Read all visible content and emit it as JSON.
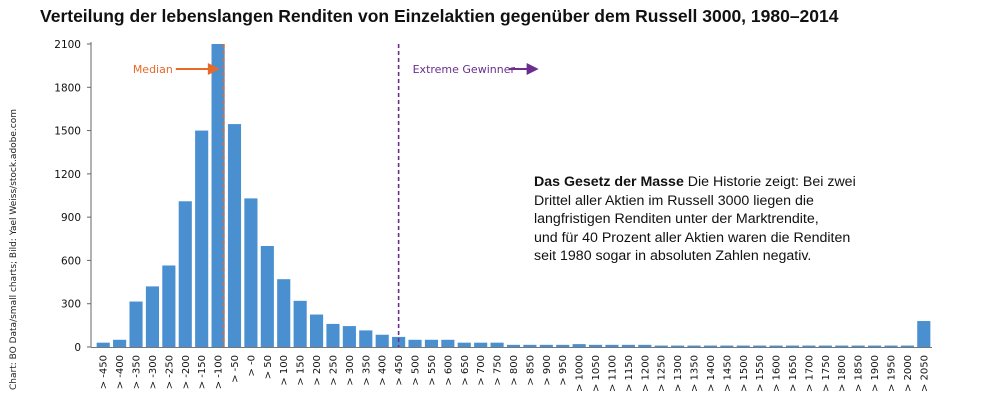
{
  "chart_data": {
    "type": "bar",
    "title": "Verteilung der lebenslangen Renditen von Einzelaktien gegenüber dem Russell 3000, 1980–2014",
    "source": "Chart: BO Data/small charts; Bild: Yael Weiss/stock.adobe.com",
    "ylim": [
      0,
      2100
    ],
    "yticks": [
      {
        "value": 0,
        "label": "0"
      },
      {
        "value": 300,
        "label": "300"
      },
      {
        "value": 600,
        "label": "600"
      },
      {
        "value": 900,
        "label": "900"
      },
      {
        "value": 1200,
        "label": "1200"
      },
      {
        "value": 1500,
        "label": "1500"
      },
      {
        "value": 1800,
        "label": "1800"
      },
      {
        "value": 2100,
        "label": "2100"
      }
    ],
    "grid": false,
    "bar_color": "#4a90d0",
    "categories": [
      "> -450",
      "> -400",
      "> -350",
      "> -300",
      "> -250",
      "> -200",
      "> -150",
      "> -100",
      "> -50",
      "> -0",
      "> 50",
      "> 100",
      "> 150",
      "> 200",
      "> 250",
      "> 300",
      "> 350",
      "> 400",
      "> 450",
      "> 500",
      "> 550",
      "> 600",
      "> 650",
      "> 700",
      "> 750",
      "> 800",
      "> 850",
      "> 900",
      "> 950",
      "> 1000",
      "> 1050",
      "> 1100",
      "> 1150",
      "> 1200",
      "> 1250",
      "> 1300",
      "> 1350",
      "> 1400",
      "> 1450",
      "> 1500",
      "> 1550",
      "> 1600",
      "> 1650",
      "> 1700",
      "> 1750",
      "> 1800",
      "> 1850",
      "> 1900",
      "> 1950",
      "> 2000",
      "> 2050"
    ],
    "values": [
      30,
      50,
      315,
      420,
      565,
      1010,
      1500,
      2100,
      1545,
      1030,
      700,
      470,
      320,
      225,
      160,
      145,
      115,
      85,
      70,
      50,
      50,
      50,
      30,
      30,
      30,
      15,
      15,
      15,
      15,
      20,
      15,
      15,
      15,
      15,
      10,
      10,
      10,
      10,
      10,
      10,
      10,
      10,
      10,
      10,
      10,
      10,
      10,
      10,
      10,
      10,
      180
    ],
    "annotations": [
      {
        "name": "median",
        "label": "Median",
        "color": "#e8692a",
        "position_after_index": 7.85
      },
      {
        "name": "extreme",
        "label": "Extreme Gewinner",
        "color": "#6a2e8e",
        "position_after_index": 18.5
      }
    ],
    "note": {
      "bold": "Das Gesetz der Masse",
      "lines": [
        " Die Historie zeigt: Bei zwei",
        "Drittel aller Aktien im Russell 3000 liegen die",
        "langfristigen Renditen unter der Marktrendite,",
        "und für 40 Prozent aller Aktien waren die Renditen",
        "seit 1980 sogar in absoluten Zahlen negativ."
      ]
    }
  }
}
